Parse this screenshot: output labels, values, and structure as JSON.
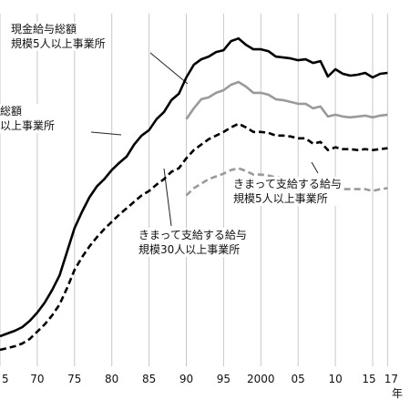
{
  "chart_data": {
    "type": "line",
    "x": [
      1965,
      1966,
      1967,
      1968,
      1969,
      1970,
      1971,
      1972,
      1973,
      1974,
      1975,
      1976,
      1977,
      1978,
      1979,
      1980,
      1981,
      1982,
      1983,
      1984,
      1985,
      1986,
      1987,
      1988,
      1989,
      1990,
      1991,
      1992,
      1993,
      1994,
      1995,
      1996,
      1997,
      1998,
      1999,
      2000,
      2001,
      2002,
      2003,
      2004,
      2005,
      2006,
      2007,
      2008,
      2009,
      2010,
      2011,
      2012,
      2013,
      2014,
      2015,
      2016,
      2017
    ],
    "series": [
      {
        "key": "total30",
        "style": "solid-black",
        "values": [
          0.5,
          2.0,
          3.5,
          5.5,
          9.0,
          13.5,
          19.0,
          26.0,
          34.0,
          47.0,
          60.0,
          69.0,
          77.0,
          83.0,
          87.0,
          92.0,
          96.0,
          99.5,
          106.0,
          111.0,
          114.0,
          120.0,
          124.0,
          130.5,
          134.0,
          143.0,
          150.0,
          153.0,
          154.5,
          157.0,
          158.0,
          163.0,
          164.5,
          161.0,
          158.5,
          158.5,
          157.5,
          154.5,
          154.0,
          153.5,
          152.5,
          153.0,
          151.0,
          152.0,
          143.5,
          147.5,
          145.0,
          144.0,
          144.5,
          145.5,
          143.0,
          145.0,
          145.5
        ]
      },
      {
        "key": "total5",
        "style": "solid-gray",
        "values": [
          null,
          null,
          null,
          null,
          null,
          null,
          null,
          null,
          null,
          null,
          null,
          null,
          null,
          null,
          null,
          null,
          null,
          null,
          null,
          null,
          null,
          null,
          null,
          null,
          null,
          120.0,
          126.0,
          131.0,
          132.0,
          134.5,
          136.0,
          139.0,
          140.5,
          138.0,
          134.5,
          134.5,
          133.5,
          131.0,
          130.5,
          129.5,
          128.5,
          128.5,
          126.0,
          127.0,
          121.5,
          122.5,
          121.5,
          121.0,
          121.5,
          122.0,
          121.0,
          122.0,
          122.5
        ]
      },
      {
        "key": "regular30",
        "style": "dashed-black",
        "values": [
          -7.0,
          -6.0,
          -5.0,
          -3.5,
          -1.0,
          3.0,
          7.0,
          12.0,
          18.0,
          27.0,
          37.0,
          44.0,
          50.0,
          55.0,
          59.5,
          63.5,
          67.5,
          71.0,
          74.5,
          78.0,
          80.5,
          84.0,
          87.0,
          91.0,
          93.0,
          98.5,
          103.0,
          106.0,
          109.0,
          111.0,
          113.0,
          115.5,
          117.5,
          115.5,
          113.0,
          113.0,
          112.5,
          111.0,
          111.0,
          110.5,
          109.5,
          109.5,
          106.5,
          107.5,
          103.0,
          104.5,
          103.5,
          103.5,
          103.0,
          103.5,
          103.0,
          103.5,
          104.0
        ]
      },
      {
        "key": "regular5",
        "style": "dashed-gray",
        "values": [
          null,
          null,
          null,
          null,
          null,
          null,
          null,
          null,
          null,
          null,
          null,
          null,
          null,
          null,
          null,
          null,
          null,
          null,
          null,
          null,
          null,
          null,
          null,
          null,
          null,
          78.0,
          82.0,
          84.5,
          87.0,
          88.5,
          90.0,
          92.0,
          93.0,
          91.5,
          89.5,
          89.5,
          89.0,
          88.0,
          87.5,
          87.0,
          86.5,
          86.0,
          84.5,
          85.0,
          81.5,
          82.5,
          81.5,
          81.5,
          81.5,
          81.5,
          80.5,
          81.5,
          82.0
        ]
      }
    ],
    "x_tick_labels": [
      "5",
      "70",
      "75",
      "80",
      "85",
      "90",
      "95",
      "2000",
      "05",
      "10",
      "15",
      "17"
    ],
    "x_unit": "年",
    "ylim": [
      0,
      175
    ],
    "grid": "vertical-lines",
    "annotations": {
      "total5": [
        "現金給与総額",
        "規模5人以上事業所"
      ],
      "total30": [
        "総額",
        "以上事業所"
      ],
      "regular5": [
        "きまって支給する給与",
        "規模5人以上事業所"
      ],
      "regular30": [
        "きまって支給する給与",
        "規模30人以上事業所"
      ]
    },
    "colors": {
      "black": "#000000",
      "gray": "#9a9a9a",
      "grid": "#c8c8c8"
    }
  }
}
